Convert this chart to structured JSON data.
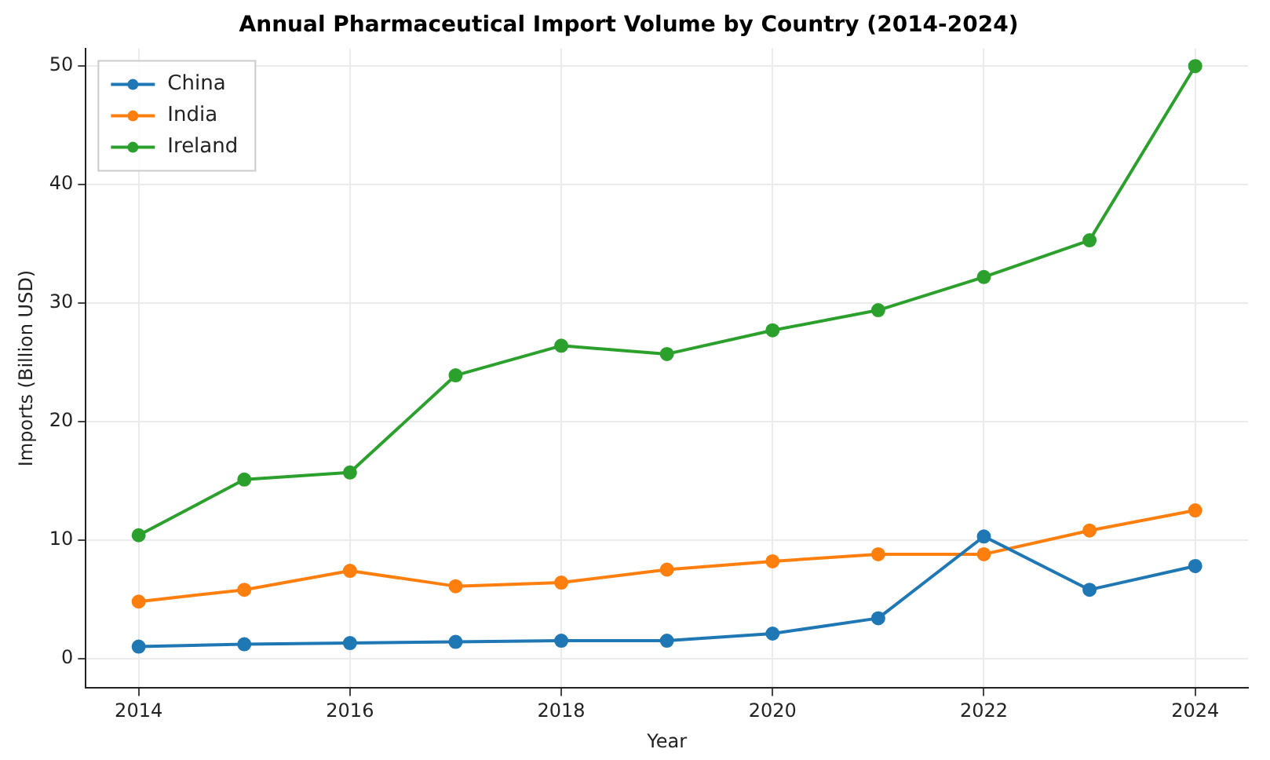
{
  "chart_data": {
    "type": "line",
    "title": "Annual Pharmaceutical Import Volume by Country (2014-2024)",
    "xlabel": "Year",
    "ylabel": "Imports (Billion USD)",
    "x": [
      2014,
      2015,
      2016,
      2017,
      2018,
      2019,
      2020,
      2021,
      2022,
      2023,
      2024
    ],
    "series": [
      {
        "name": "China",
        "color": "#1f77b4",
        "values": [
          1.0,
          1.2,
          1.3,
          1.4,
          1.5,
          1.5,
          2.1,
          3.4,
          10.3,
          5.8,
          7.8
        ]
      },
      {
        "name": "India",
        "color": "#ff7f0e",
        "values": [
          4.8,
          5.8,
          7.4,
          6.1,
          6.4,
          7.5,
          8.2,
          8.8,
          8.8,
          10.8,
          12.5
        ]
      },
      {
        "name": "Ireland",
        "color": "#2ca02c",
        "values": [
          10.4,
          15.1,
          15.7,
          23.9,
          26.4,
          25.7,
          27.7,
          29.4,
          32.2,
          35.3,
          50.0
        ]
      }
    ],
    "xlim": [
      2013.5,
      2024.5
    ],
    "xticks": [
      2014,
      2016,
      2018,
      2020,
      2022,
      2024
    ],
    "ylim": [
      -2.5,
      51.5
    ],
    "yticks": [
      0,
      10,
      20,
      30,
      40,
      50
    ],
    "grid": true,
    "legend": "top left",
    "marker": "circle",
    "line_style": "solid"
  }
}
